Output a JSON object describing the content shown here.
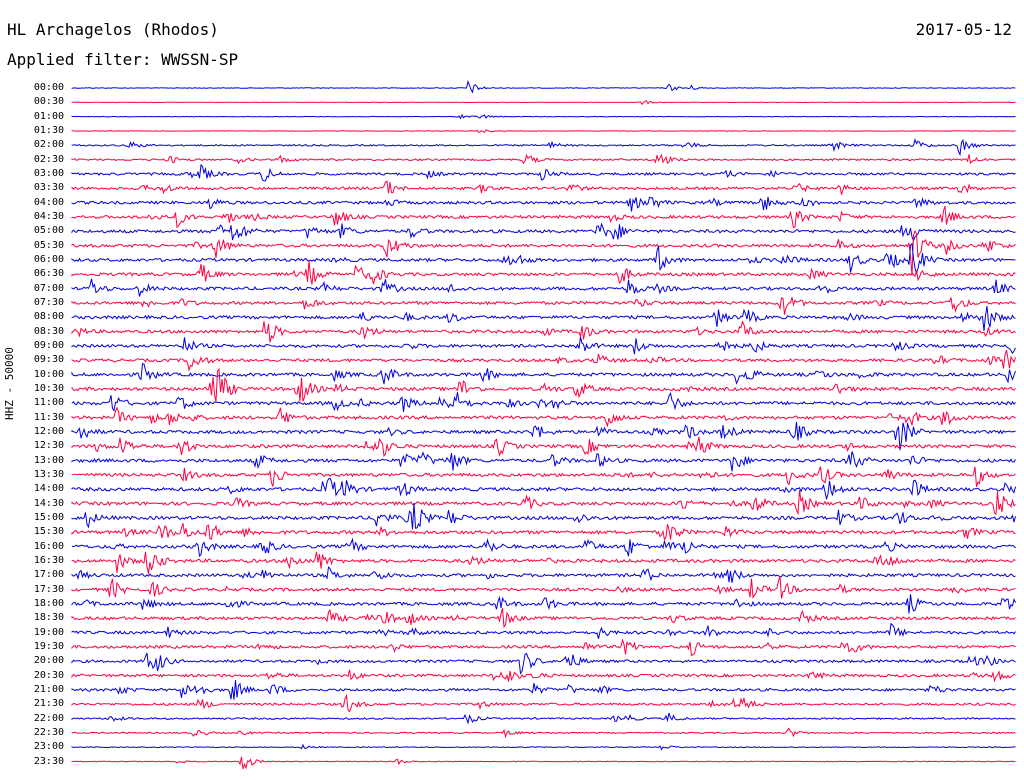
{
  "header": {
    "station": "HL Archagelos (Rhodos)",
    "date": "2017-05-12",
    "filter": "Applied filter: WWSSN-SP"
  },
  "side_label": "HHZ - 50000",
  "colors": {
    "trace_a": "#0000e0",
    "trace_b": "#ff0040",
    "background": "#ffffff",
    "text": "#000000"
  },
  "chart_data": {
    "type": "line",
    "title": "HL Archagelos (Rhodos)",
    "subtitle": "Applied filter: WWSSN-SP",
    "ylabel": "HHZ - 50000",
    "date": "2017-05-12",
    "rows": [
      "00:00",
      "00:30",
      "01:00",
      "01:30",
      "02:00",
      "02:30",
      "03:00",
      "03:30",
      "04:00",
      "04:30",
      "05:00",
      "05:30",
      "06:00",
      "06:30",
      "07:00",
      "07:30",
      "08:00",
      "08:30",
      "09:00",
      "09:30",
      "10:00",
      "10:30",
      "11:00",
      "11:30",
      "12:00",
      "12:30",
      "13:00",
      "13:30",
      "14:00",
      "14:30",
      "15:00",
      "15:30",
      "16:00",
      "16:30",
      "17:00",
      "17:30",
      "18:00",
      "18:30",
      "19:00",
      "19:30",
      "20:00",
      "20:30",
      "21:00",
      "21:30",
      "22:00",
      "22:30",
      "23:00",
      "23:30"
    ],
    "row_colors": "alternating blue / red per 30-minute line",
    "noise_level": [
      0.6,
      0.4,
      0.5,
      0.4,
      1.5,
      1.8,
      2.4,
      2.5,
      2.8,
      2.9,
      3.0,
      3.0,
      3.0,
      3.0,
      3.0,
      3.0,
      3.0,
      3.0,
      3.0,
      3.0,
      3.2,
      3.2,
      3.2,
      3.2,
      3.2,
      3.2,
      3.2,
      3.2,
      3.3,
      3.3,
      3.3,
      3.3,
      3.2,
      3.2,
      3.0,
      3.0,
      3.0,
      3.0,
      2.8,
      2.8,
      2.6,
      2.6,
      2.5,
      2.2,
      1.6,
      1.2,
      0.8,
      0.7
    ],
    "notable_events": [
      {
        "row": "00:00",
        "position": 0.42,
        "amplitude": 8
      },
      {
        "row": "02:00",
        "position": 0.94,
        "amplitude": 10
      },
      {
        "row": "02:30",
        "position": 0.62,
        "amplitude": 12
      },
      {
        "row": "05:00",
        "position": 0.17,
        "amplitude": 10
      },
      {
        "row": "05:30",
        "position": 0.89,
        "amplitude": 30
      },
      {
        "row": "06:00",
        "position": 0.89,
        "amplitude": 24
      },
      {
        "row": "10:30",
        "position": 0.15,
        "amplitude": 16
      },
      {
        "row": "11:00",
        "position": 0.39,
        "amplitude": 10
      },
      {
        "row": "12:00",
        "position": 0.69,
        "amplitude": 10
      },
      {
        "row": "13:00",
        "position": 0.7,
        "amplitude": 14
      },
      {
        "row": "14:30",
        "position": 0.77,
        "amplitude": 14
      },
      {
        "row": "15:00",
        "position": 0.4,
        "amplitude": 10
      },
      {
        "row": "17:30",
        "position": 0.75,
        "amplitude": 12
      },
      {
        "row": "20:00",
        "position": 0.08,
        "amplitude": 12
      },
      {
        "row": "21:00",
        "position": 0.17,
        "amplitude": 14
      },
      {
        "row": "23:30",
        "position": 0.18,
        "amplitude": 12
      }
    ]
  }
}
